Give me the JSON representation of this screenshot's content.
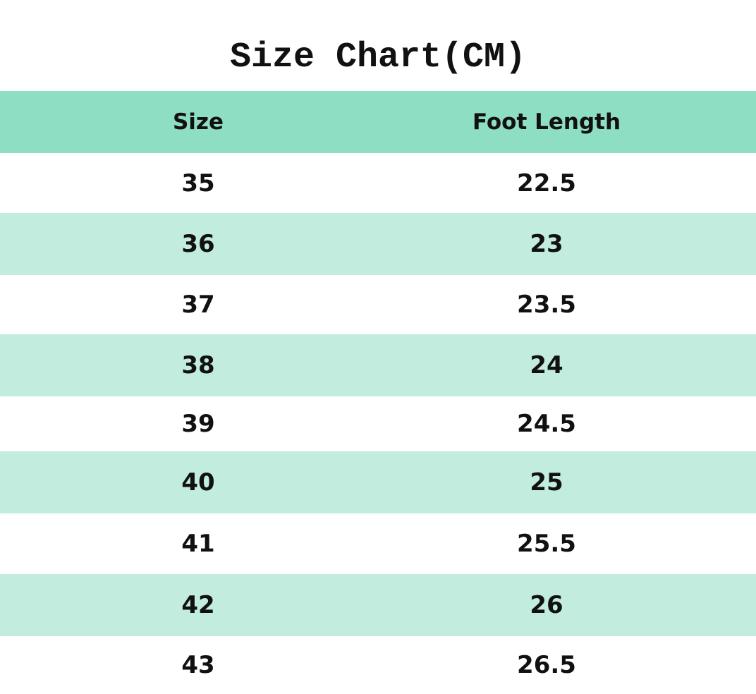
{
  "title": "Size Chart(CM)",
  "colors": {
    "header_bg": "#8EDEC3",
    "stripe_bg": "#C2ECDD",
    "row_bg": "#FFFFFF"
  },
  "table": {
    "headers": [
      "Size",
      "Foot Length"
    ],
    "rows": [
      [
        "35",
        "22.5"
      ],
      [
        "36",
        "23"
      ],
      [
        "37",
        "23.5"
      ],
      [
        "38",
        "24"
      ],
      [
        "39",
        "24.5"
      ],
      [
        "40",
        "25"
      ],
      [
        "41",
        "25.5"
      ],
      [
        "42",
        "26"
      ],
      [
        "43",
        "26.5"
      ]
    ]
  }
}
